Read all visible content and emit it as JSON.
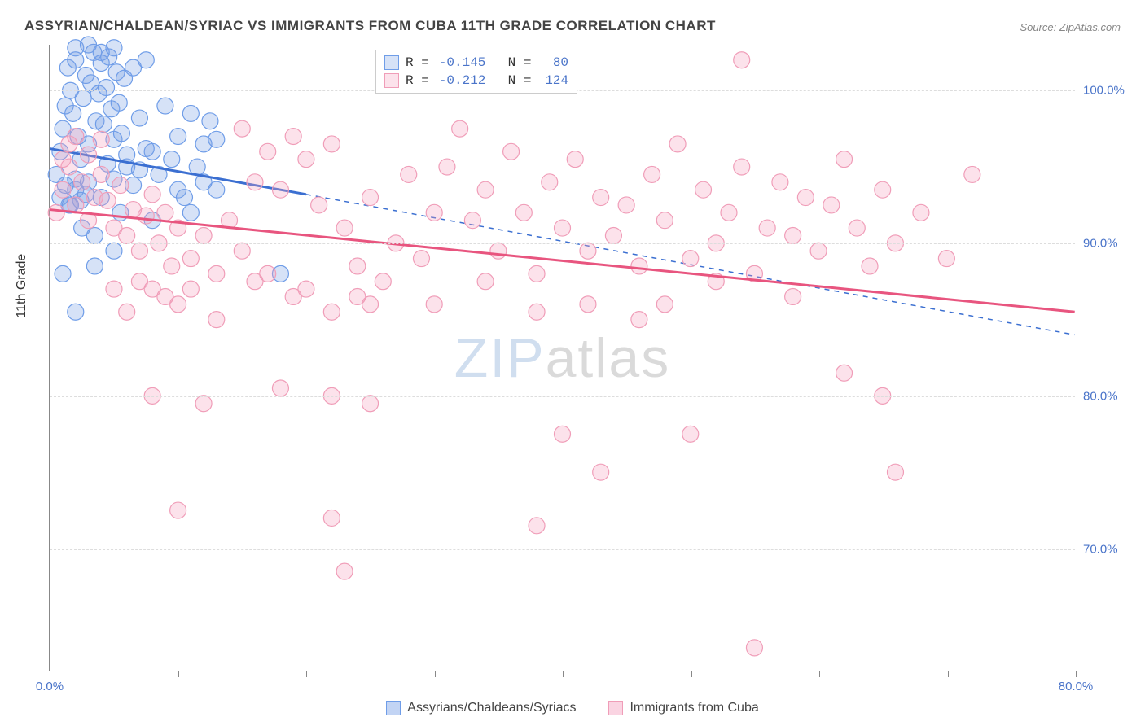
{
  "title": "ASSYRIAN/CHALDEAN/SYRIAC VS IMMIGRANTS FROM CUBA 11TH GRADE CORRELATION CHART",
  "source": "Source: ZipAtlas.com",
  "y_axis_label": "11th Grade",
  "watermark": {
    "zip": "ZIP",
    "atlas": "atlas"
  },
  "chart": {
    "type": "scatter",
    "xlim": [
      0,
      80
    ],
    "ylim": [
      62,
      103
    ],
    "x_ticks": [
      0,
      10,
      20,
      30,
      40,
      50,
      60,
      70,
      80
    ],
    "x_tick_labels": {
      "0": "0.0%",
      "80": "80.0%"
    },
    "x_tick_color": "#4a74c9",
    "y_gridlines": [
      70,
      80,
      90,
      100
    ],
    "y_tick_labels": {
      "70": "70.0%",
      "80": "80.0%",
      "90": "90.0%",
      "100": "100.0%"
    },
    "y_tick_color": "#4a74c9",
    "grid_color": "#dddddd",
    "background_color": "#ffffff",
    "marker_radius": 10,
    "marker_stroke_width": 1.2,
    "series": [
      {
        "name": "Assyrians/Chaldeans/Syriacs",
        "fill": "rgba(120,160,230,0.30)",
        "stroke": "#6f9de8",
        "line_color": "#3b6fd1",
        "r_value": "-0.145",
        "n_value": "80",
        "value_color": "#4a74c9",
        "trend": {
          "x1": 0,
          "y1": 96.2,
          "x2": 20,
          "y2": 93.2,
          "solid_until_x": 20,
          "dash_to_x": 80,
          "dash_y_end": 84.0
        },
        "points": [
          [
            0.5,
            94.5
          ],
          [
            0.8,
            96.0
          ],
          [
            1.0,
            97.5
          ],
          [
            1.2,
            99.0
          ],
          [
            1.4,
            101.5
          ],
          [
            1.6,
            100.0
          ],
          [
            1.8,
            98.5
          ],
          [
            2.0,
            102.0
          ],
          [
            2.2,
            97.0
          ],
          [
            2.4,
            95.5
          ],
          [
            2.6,
            99.5
          ],
          [
            2.8,
            101.0
          ],
          [
            3.0,
            96.5
          ],
          [
            3.2,
            100.5
          ],
          [
            3.4,
            102.5
          ],
          [
            3.6,
            98.0
          ],
          [
            3.8,
            99.8
          ],
          [
            4.0,
            101.8
          ],
          [
            4.2,
            97.8
          ],
          [
            4.4,
            100.2
          ],
          [
            4.6,
            102.2
          ],
          [
            4.8,
            98.8
          ],
          [
            5.0,
            96.8
          ],
          [
            5.2,
            101.2
          ],
          [
            5.4,
            99.2
          ],
          [
            5.6,
            97.2
          ],
          [
            5.8,
            100.8
          ],
          [
            6.0,
            95.0
          ],
          [
            6.5,
            101.5
          ],
          [
            7.0,
            98.2
          ],
          [
            7.5,
            102.0
          ],
          [
            8.0,
            96.0
          ],
          [
            1.0,
            88.0
          ],
          [
            1.5,
            92.5
          ],
          [
            2.0,
            93.5
          ],
          [
            2.5,
            91.0
          ],
          [
            3.0,
            94.0
          ],
          [
            3.5,
            90.5
          ],
          [
            4.0,
            93.0
          ],
          [
            4.5,
            95.2
          ],
          [
            5.0,
            94.2
          ],
          [
            5.5,
            92.0
          ],
          [
            6.0,
            95.8
          ],
          [
            6.5,
            93.8
          ],
          [
            7.0,
            94.8
          ],
          [
            7.5,
            96.2
          ],
          [
            8.0,
            91.5
          ],
          [
            8.5,
            94.5
          ],
          [
            9.0,
            99.0
          ],
          [
            9.5,
            95.5
          ],
          [
            10.0,
            97.0
          ],
          [
            10.5,
            93.0
          ],
          [
            11.0,
            98.5
          ],
          [
            11.5,
            95.0
          ],
          [
            12.0,
            96.5
          ],
          [
            12.5,
            98.0
          ],
          [
            13.0,
            96.8
          ],
          [
            2.0,
            102.8
          ],
          [
            3.0,
            103.0
          ],
          [
            4.0,
            102.5
          ],
          [
            5.0,
            102.8
          ],
          [
            2.0,
            85.5
          ],
          [
            3.5,
            88.5
          ],
          [
            5.0,
            89.5
          ],
          [
            0.8,
            93.0
          ],
          [
            1.2,
            93.8
          ],
          [
            1.6,
            92.5
          ],
          [
            2.0,
            94.2
          ],
          [
            2.4,
            92.8
          ],
          [
            2.8,
            93.2
          ],
          [
            10.0,
            93.5
          ],
          [
            11.0,
            92.0
          ],
          [
            12.0,
            94.0
          ],
          [
            13.0,
            93.5
          ],
          [
            18.0,
            88.0
          ]
        ]
      },
      {
        "name": "Immigrants from Cuba",
        "fill": "rgba(245,160,190,0.30)",
        "stroke": "#f09db8",
        "line_color": "#e8557f",
        "r_value": "-0.212",
        "n_value": "124",
        "value_color": "#4a74c9",
        "trend": {
          "x1": 0,
          "y1": 92.2,
          "x2": 80,
          "y2": 85.5,
          "solid_until_x": 80
        },
        "points": [
          [
            0.5,
            92.0
          ],
          [
            1.0,
            93.5
          ],
          [
            1.5,
            95.0
          ],
          [
            2.0,
            92.5
          ],
          [
            2.5,
            94.0
          ],
          [
            3.0,
            91.5
          ],
          [
            3.5,
            93.0
          ],
          [
            4.0,
            94.5
          ],
          [
            4.5,
            92.8
          ],
          [
            5.0,
            91.0
          ],
          [
            5.5,
            93.8
          ],
          [
            6.0,
            90.5
          ],
          [
            6.5,
            92.2
          ],
          [
            7.0,
            89.5
          ],
          [
            7.5,
            91.8
          ],
          [
            8.0,
            93.2
          ],
          [
            8.5,
            90.0
          ],
          [
            9.0,
            92.0
          ],
          [
            9.5,
            88.5
          ],
          [
            10.0,
            91.0
          ],
          [
            11.0,
            89.0
          ],
          [
            12.0,
            90.5
          ],
          [
            13.0,
            88.0
          ],
          [
            14.0,
            91.5
          ],
          [
            15.0,
            97.5
          ],
          [
            16.0,
            94.0
          ],
          [
            17.0,
            96.0
          ],
          [
            18.0,
            93.5
          ],
          [
            19.0,
            97.0
          ],
          [
            20.0,
            95.5
          ],
          [
            21.0,
            92.5
          ],
          [
            22.0,
            96.5
          ],
          [
            23.0,
            91.0
          ],
          [
            24.0,
            88.5
          ],
          [
            25.0,
            93.0
          ],
          [
            26.0,
            87.5
          ],
          [
            27.0,
            90.0
          ],
          [
            28.0,
            94.5
          ],
          [
            29.0,
            89.0
          ],
          [
            30.0,
            92.0
          ],
          [
            31.0,
            95.0
          ],
          [
            32.0,
            97.5
          ],
          [
            33.0,
            91.5
          ],
          [
            34.0,
            93.5
          ],
          [
            35.0,
            89.5
          ],
          [
            36.0,
            96.0
          ],
          [
            37.0,
            92.0
          ],
          [
            38.0,
            88.0
          ],
          [
            39.0,
            94.0
          ],
          [
            40.0,
            91.0
          ],
          [
            41.0,
            95.5
          ],
          [
            42.0,
            89.5
          ],
          [
            43.0,
            93.0
          ],
          [
            44.0,
            90.5
          ],
          [
            45.0,
            92.5
          ],
          [
            46.0,
            88.5
          ],
          [
            47.0,
            94.5
          ],
          [
            48.0,
            91.5
          ],
          [
            49.0,
            96.5
          ],
          [
            50.0,
            89.0
          ],
          [
            51.0,
            93.5
          ],
          [
            52.0,
            90.0
          ],
          [
            53.0,
            92.0
          ],
          [
            54.0,
            95.0
          ],
          [
            55.0,
            88.0
          ],
          [
            56.0,
            91.0
          ],
          [
            57.0,
            94.0
          ],
          [
            58.0,
            90.5
          ],
          [
            59.0,
            93.0
          ],
          [
            60.0,
            89.5
          ],
          [
            61.0,
            92.5
          ],
          [
            62.0,
            95.5
          ],
          [
            63.0,
            91.0
          ],
          [
            64.0,
            88.5
          ],
          [
            65.0,
            93.5
          ],
          [
            66.0,
            90.0
          ],
          [
            68.0,
            92.0
          ],
          [
            70.0,
            89.0
          ],
          [
            72.0,
            94.5
          ],
          [
            6.0,
            85.5
          ],
          [
            8.0,
            87.0
          ],
          [
            10.0,
            86.0
          ],
          [
            13.0,
            85.0
          ],
          [
            16.0,
            87.5
          ],
          [
            19.0,
            86.5
          ],
          [
            22.0,
            85.5
          ],
          [
            25.0,
            86.0
          ],
          [
            8.0,
            80.0
          ],
          [
            12.0,
            79.5
          ],
          [
            18.0,
            80.5
          ],
          [
            25.0,
            79.5
          ],
          [
            22.0,
            80.0
          ],
          [
            10.0,
            72.5
          ],
          [
            22.0,
            72.0
          ],
          [
            38.0,
            71.5
          ],
          [
            40.0,
            77.5
          ],
          [
            43.0,
            75.0
          ],
          [
            23.0,
            68.5
          ],
          [
            54.0,
            102.0
          ],
          [
            62.0,
            81.5
          ],
          [
            65.0,
            80.0
          ],
          [
            66.0,
            75.0
          ],
          [
            48.0,
            86.0
          ],
          [
            52.0,
            87.5
          ],
          [
            58.0,
            86.5
          ],
          [
            1.0,
            95.5
          ],
          [
            1.5,
            96.5
          ],
          [
            2.0,
            97.0
          ],
          [
            3.0,
            95.8
          ],
          [
            4.0,
            96.8
          ],
          [
            5.0,
            87.0
          ],
          [
            7.0,
            87.5
          ],
          [
            9.0,
            86.5
          ],
          [
            11.0,
            87.0
          ],
          [
            15.0,
            89.5
          ],
          [
            17.0,
            88.0
          ],
          [
            20.0,
            87.0
          ],
          [
            24.0,
            86.5
          ],
          [
            30.0,
            86.0
          ],
          [
            34.0,
            87.5
          ],
          [
            38.0,
            85.5
          ],
          [
            42.0,
            86.0
          ],
          [
            46.0,
            85.0
          ],
          [
            50.0,
            77.5
          ],
          [
            55.0,
            63.5
          ]
        ]
      }
    ]
  },
  "bottom_legend": [
    {
      "label": "Assyrians/Chaldeans/Syriacs",
      "fill": "rgba(120,160,230,0.45)",
      "stroke": "#6f9de8"
    },
    {
      "label": "Immigrants from Cuba",
      "fill": "rgba(245,160,190,0.45)",
      "stroke": "#f09db8"
    }
  ]
}
